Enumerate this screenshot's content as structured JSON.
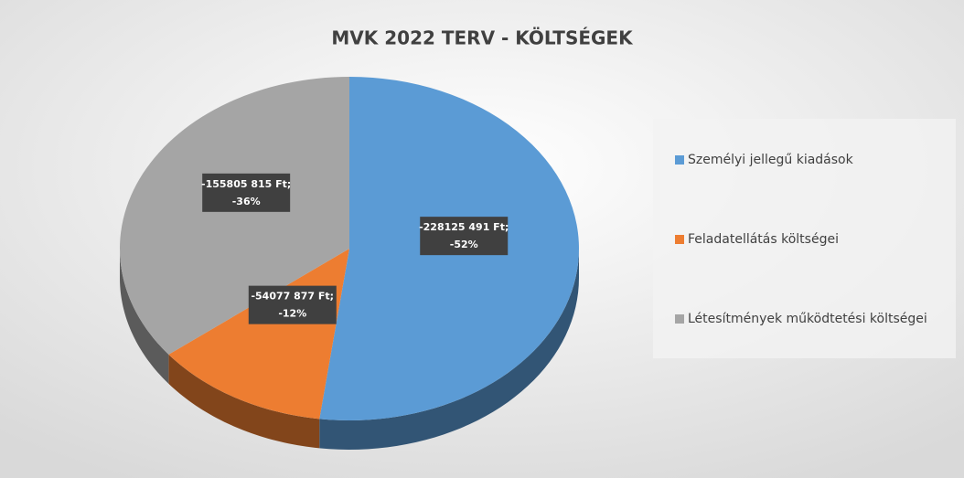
{
  "chart_data": {
    "type": "pie",
    "title": "MVK 2022 TERV - KÖLTSÉGEK",
    "categories": [
      "Személyi jellegű kiadások",
      "Feladatellátás költségei",
      "Létesítmények működtetési költségei"
    ],
    "values": [
      -228125491,
      -54077877,
      -155805815
    ],
    "value_labels": [
      [
        "-228125 491 Ft;",
        "-52%"
      ],
      [
        "-54077 877 Ft;",
        "-12%"
      ],
      [
        "-155805 815 Ft;",
        "-36%"
      ]
    ],
    "colors": [
      "#5b9bd5",
      "#ed7d31",
      "#a5a5a5"
    ],
    "legend": "right"
  }
}
